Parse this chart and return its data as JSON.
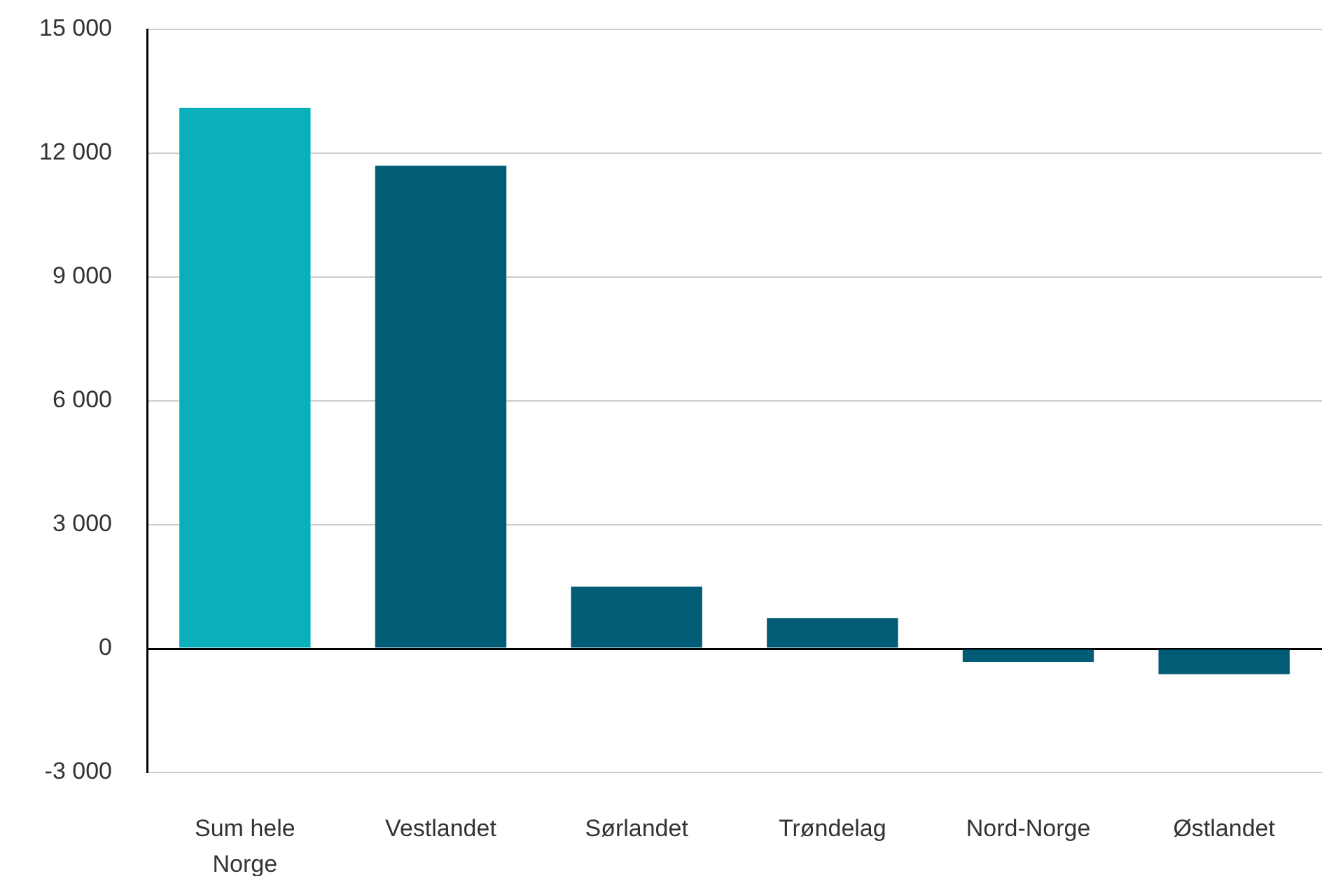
{
  "chart_data": {
    "type": "bar",
    "categories": [
      "Sum hele Norge",
      "Vestlandet",
      "Sørlandet",
      "Trøndelag",
      "Nord-Norge",
      "Østlandet"
    ],
    "values": [
      13100,
      11700,
      1500,
      740,
      -320,
      -620
    ],
    "colors": [
      "#0aafbc",
      "#035c75",
      "#035c75",
      "#035c75",
      "#035c75",
      "#035c75"
    ],
    "ylim": [
      -3000,
      15000
    ],
    "yticks": [
      {
        "value": -3000,
        "label": "-3 000"
      },
      {
        "value": 0,
        "label": "0"
      },
      {
        "value": 3000,
        "label": "3 000"
      },
      {
        "value": 6000,
        "label": "6 000"
      },
      {
        "value": 9000,
        "label": "9 000"
      },
      {
        "value": 12000,
        "label": "12 000"
      },
      {
        "value": 15000,
        "label": "15 000"
      }
    ],
    "grid": "y"
  }
}
